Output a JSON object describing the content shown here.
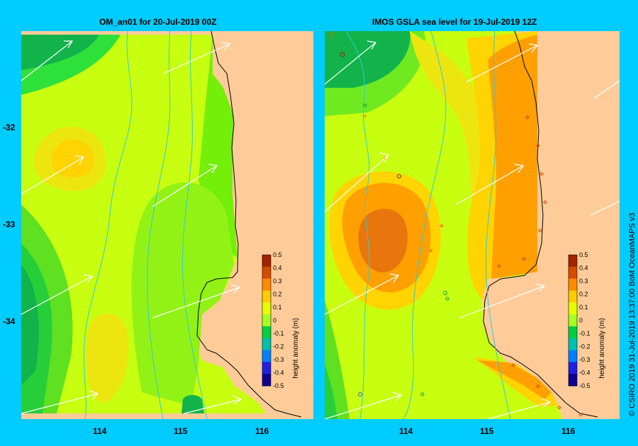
{
  "panels": [
    {
      "title": "OM_an01  for 20-Jul-2019 00Z"
    },
    {
      "title": "IMOS GSLA sea level  for 19-Jul-2019 12Z"
    }
  ],
  "axes": {
    "x_ticks": [
      "114",
      "115",
      "116"
    ],
    "y_ticks": [
      "-32",
      "-33",
      "-34"
    ]
  },
  "colorbar": {
    "label": "height anomaly (m)",
    "ticks": [
      "0.5",
      "0.4",
      "0.3",
      "0.2",
      "0.1",
      "0",
      "-0.1",
      "-0.2",
      "-0.3",
      "-0.4",
      "-0.5"
    ],
    "colors": [
      "#a32200",
      "#d84a00",
      "#ff8c00",
      "#ffcc00",
      "#e6ff00",
      "#a5ff20",
      "#00d040",
      "#00c0b0",
      "#0080ff",
      "#2020e0",
      "#100090"
    ]
  },
  "colors": {
    "background": "#00ccff",
    "land": "#ffcc99",
    "coast": "#000000",
    "bathymetry_contour": "#33cccc",
    "current_vectors": "#ffffff"
  },
  "credit": "© CSIRO 2019   31-Jul-2019 13:37:00 BoM OceanMAPS v3"
}
